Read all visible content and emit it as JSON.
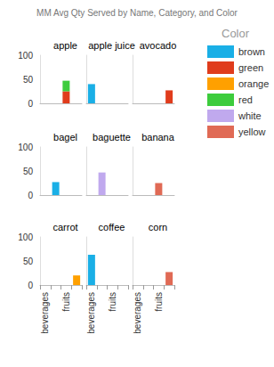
{
  "chart_data": {
    "type": "bar",
    "title": "MM Avg Qty Served by Name, Category, and Color",
    "legend_title": "Color",
    "legend": "top-right",
    "stacked": true,
    "grid": false,
    "categories": [
      "beverages",
      null,
      "fruits",
      null
    ],
    "ylim": [
      0,
      100
    ],
    "yticks": [
      0,
      50,
      100
    ],
    "panels": [
      {
        "title": "apple",
        "series": [
          {
            "name": "green",
            "color": "#e03c1c",
            "values": [
              null,
              null,
              25,
              null
            ]
          },
          {
            "name": "red",
            "color": "#3dcc3d",
            "values": [
              null,
              null,
              22,
              null
            ]
          }
        ]
      },
      {
        "title": "apple juice",
        "series": [
          {
            "name": "brown",
            "color": "#1aafe6",
            "values": [
              40,
              null,
              null,
              null
            ]
          }
        ]
      },
      {
        "title": "avocado",
        "series": [
          {
            "name": "green",
            "color": "#e03c1c",
            "values": [
              null,
              null,
              null,
              27
            ]
          }
        ]
      },
      {
        "title": "bagel",
        "series": [
          {
            "name": "brown",
            "color": "#1aafe6",
            "values": [
              null,
              27,
              null,
              null
            ]
          }
        ]
      },
      {
        "title": "baguette",
        "series": [
          {
            "name": "white",
            "color": "#c0a9ee",
            "values": [
              null,
              47,
              null,
              null
            ]
          }
        ]
      },
      {
        "title": "banana",
        "series": [
          {
            "name": "yellow",
            "color": "#e06a55",
            "values": [
              null,
              null,
              25,
              null
            ]
          }
        ]
      },
      {
        "title": "carrot",
        "series": [
          {
            "name": "orange",
            "color": "#ffa000",
            "values": [
              null,
              null,
              null,
              20
            ]
          }
        ]
      },
      {
        "title": "coffee",
        "series": [
          {
            "name": "brown",
            "color": "#1aafe6",
            "values": [
              63,
              null,
              null,
              null
            ]
          }
        ]
      },
      {
        "title": "corn",
        "series": [
          {
            "name": "yellow",
            "color": "#e06a55",
            "values": [
              null,
              null,
              null,
              27
            ]
          }
        ]
      }
    ]
  }
}
